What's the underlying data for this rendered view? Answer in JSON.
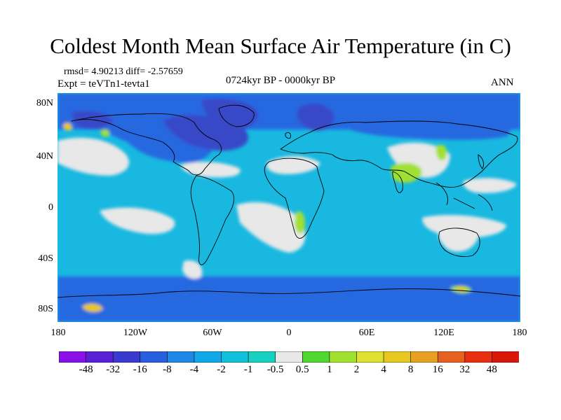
{
  "figure": {
    "title": "Coldest Month Mean Surface Air Temperature (in C)",
    "stats": "rmsd= 4.90213  diff= -2.57659",
    "expt": "Expt = teVTn1-tevta1",
    "period": "0724kyr BP - 0000kyr BP",
    "season": "ANN"
  },
  "axes": {
    "lat_ticks": [
      "80N",
      "40N",
      "0",
      "40S",
      "80S"
    ],
    "lon_ticks": [
      "180",
      "120W",
      "60W",
      "0",
      "60E",
      "120E",
      "180"
    ]
  },
  "colorbar": {
    "labels": [
      "-48",
      "-32",
      "-16",
      "-8",
      "-4",
      "-2",
      "-1",
      "-0.5",
      "0.5",
      "1",
      "2",
      "4",
      "8",
      "16",
      "32",
      "48"
    ],
    "colors": [
      "#8a10e8",
      "#5a20d8",
      "#3a3ad0",
      "#2a5ee0",
      "#1e88e8",
      "#10a8e8",
      "#10c0d8",
      "#18d0c0",
      "#e8e8e8",
      "#50d830",
      "#a0e030",
      "#e0e030",
      "#e8c820",
      "#e8a020",
      "#e86020",
      "#e83010",
      "#d81808"
    ]
  },
  "map": {
    "ocean_color": "#18b8e0",
    "land_color": "#18c8d0",
    "cold_color": "#2868e0",
    "verycold_color": "#3848c8",
    "neutral_color": "#e8e8e8",
    "warm_color": "#a0e030",
    "hot_color": "#e8c820"
  }
}
